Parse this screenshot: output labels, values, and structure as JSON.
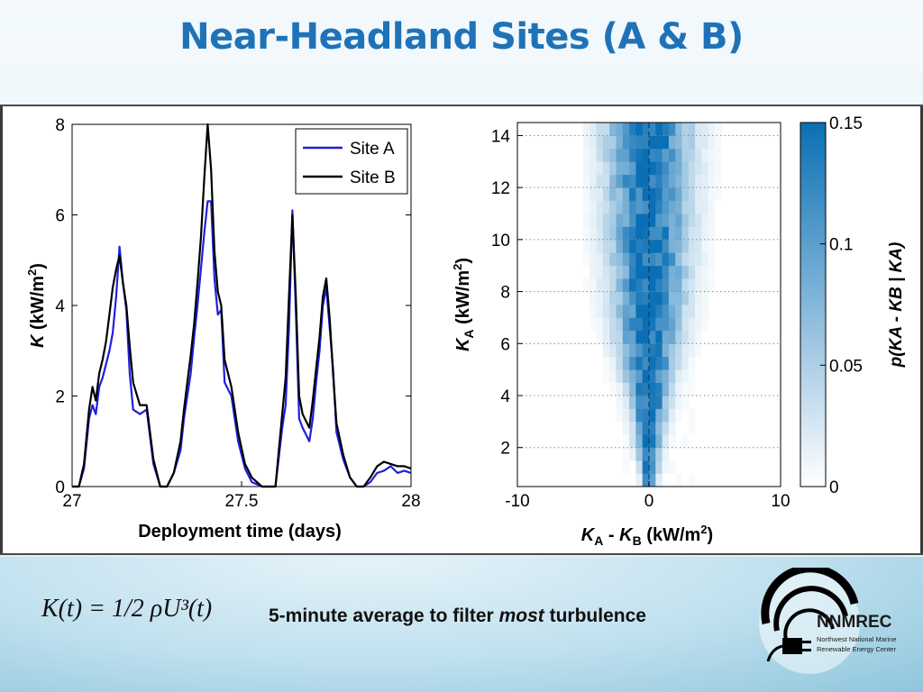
{
  "slide": {
    "title": "Near-Headland Sites (A & B)",
    "formula": "K(t) = 1/2 ρU³(t)",
    "caption_before": "5-minute average to filter ",
    "caption_emph": "most",
    "caption_after": " turbulence"
  },
  "logo": {
    "name": "NNMREC",
    "line1": "Northwest National Marine",
    "line2": "Renewable Energy Center"
  },
  "chart_data": [
    {
      "type": "line",
      "xlabel": "Deployment time (days)",
      "ylabel_main": "K",
      "ylabel_unit": " (kW/m",
      "ylabel_sup": "2",
      "ylabel_close": ")",
      "xlim": [
        27,
        28
      ],
      "ylim": [
        0,
        8
      ],
      "xticks": [
        "27",
        "27.5",
        "28"
      ],
      "yticks": [
        "0",
        "2",
        "4",
        "6",
        "8"
      ],
      "legend_position": "top-right",
      "series": [
        {
          "name": "Site A",
          "color": "#1f1fe0",
          "points": [
            [
              27.0,
              0
            ],
            [
              27.02,
              0
            ],
            [
              27.035,
              0.4
            ],
            [
              27.05,
              1.5
            ],
            [
              27.06,
              1.8
            ],
            [
              27.07,
              1.6
            ],
            [
              27.08,
              2.2
            ],
            [
              27.09,
              2.4
            ],
            [
              27.1,
              2.7
            ],
            [
              27.11,
              3.0
            ],
            [
              27.12,
              3.4
            ],
            [
              27.13,
              4.2
            ],
            [
              27.14,
              5.3
            ],
            [
              27.15,
              4.5
            ],
            [
              27.16,
              3.9
            ],
            [
              27.17,
              2.5
            ],
            [
              27.18,
              1.7
            ],
            [
              27.2,
              1.6
            ],
            [
              27.22,
              1.7
            ],
            [
              27.24,
              0.5
            ],
            [
              27.26,
              0
            ],
            [
              27.28,
              0
            ],
            [
              27.3,
              0.3
            ],
            [
              27.32,
              0.8
            ],
            [
              27.33,
              1.5
            ],
            [
              27.34,
              2.0
            ],
            [
              27.35,
              2.5
            ],
            [
              27.36,
              3.3
            ],
            [
              27.37,
              4.0
            ],
            [
              27.38,
              4.8
            ],
            [
              27.39,
              5.6
            ],
            [
              27.4,
              6.3
            ],
            [
              27.41,
              6.3
            ],
            [
              27.42,
              4.6
            ],
            [
              27.43,
              3.8
            ],
            [
              27.44,
              3.9
            ],
            [
              27.45,
              2.3
            ],
            [
              27.47,
              2.0
            ],
            [
              27.49,
              1.0
            ],
            [
              27.51,
              0.4
            ],
            [
              27.53,
              0.1
            ],
            [
              27.56,
              0
            ],
            [
              27.6,
              0
            ],
            [
              27.62,
              1.3
            ],
            [
              27.63,
              1.8
            ],
            [
              27.64,
              3.5
            ],
            [
              27.65,
              6.1
            ],
            [
              27.66,
              3.9
            ],
            [
              27.67,
              1.5
            ],
            [
              27.68,
              1.3
            ],
            [
              27.7,
              1.0
            ],
            [
              27.71,
              1.5
            ],
            [
              27.72,
              2.3
            ],
            [
              27.73,
              3.0
            ],
            [
              27.74,
              4.0
            ],
            [
              27.75,
              4.4
            ],
            [
              27.76,
              3.5
            ],
            [
              27.77,
              2.6
            ],
            [
              27.78,
              1.2
            ],
            [
              27.8,
              0.6
            ],
            [
              27.82,
              0.2
            ],
            [
              27.84,
              0
            ],
            [
              27.86,
              0
            ],
            [
              27.88,
              0.1
            ],
            [
              27.9,
              0.3
            ],
            [
              27.92,
              0.35
            ],
            [
              27.94,
              0.45
            ],
            [
              27.96,
              0.3
            ],
            [
              27.98,
              0.35
            ],
            [
              28.0,
              0.3
            ]
          ]
        },
        {
          "name": "Site B",
          "color": "#000000",
          "points": [
            [
              27.0,
              0
            ],
            [
              27.02,
              0
            ],
            [
              27.035,
              0.5
            ],
            [
              27.05,
              1.7
            ],
            [
              27.06,
              2.2
            ],
            [
              27.07,
              1.9
            ],
            [
              27.08,
              2.5
            ],
            [
              27.09,
              2.8
            ],
            [
              27.1,
              3.2
            ],
            [
              27.11,
              3.8
            ],
            [
              27.12,
              4.4
            ],
            [
              27.13,
              4.8
            ],
            [
              27.14,
              5.1
            ],
            [
              27.15,
              4.5
            ],
            [
              27.16,
              4.0
            ],
            [
              27.17,
              3.1
            ],
            [
              27.18,
              2.3
            ],
            [
              27.2,
              1.8
            ],
            [
              27.22,
              1.8
            ],
            [
              27.24,
              0.6
            ],
            [
              27.26,
              0
            ],
            [
              27.28,
              0
            ],
            [
              27.3,
              0.3
            ],
            [
              27.32,
              1.0
            ],
            [
              27.33,
              1.7
            ],
            [
              27.34,
              2.3
            ],
            [
              27.35,
              2.9
            ],
            [
              27.36,
              3.6
            ],
            [
              27.37,
              4.5
            ],
            [
              27.38,
              5.5
            ],
            [
              27.39,
              6.8
            ],
            [
              27.4,
              8.0
            ],
            [
              27.41,
              7.0
            ],
            [
              27.42,
              5.2
            ],
            [
              27.43,
              4.3
            ],
            [
              27.44,
              4.0
            ],
            [
              27.45,
              2.8
            ],
            [
              27.47,
              2.2
            ],
            [
              27.49,
              1.2
            ],
            [
              27.51,
              0.5
            ],
            [
              27.53,
              0.2
            ],
            [
              27.56,
              0
            ],
            [
              27.6,
              0
            ],
            [
              27.62,
              1.6
            ],
            [
              27.63,
              2.4
            ],
            [
              27.64,
              4.2
            ],
            [
              27.65,
              6.0
            ],
            [
              27.66,
              4.2
            ],
            [
              27.67,
              2.0
            ],
            [
              27.68,
              1.6
            ],
            [
              27.7,
              1.3
            ],
            [
              27.71,
              1.9
            ],
            [
              27.72,
              2.6
            ],
            [
              27.73,
              3.3
            ],
            [
              27.74,
              4.2
            ],
            [
              27.75,
              4.6
            ],
            [
              27.76,
              3.7
            ],
            [
              27.77,
              2.5
            ],
            [
              27.78,
              1.4
            ],
            [
              27.8,
              0.7
            ],
            [
              27.82,
              0.2
            ],
            [
              27.84,
              0
            ],
            [
              27.86,
              0
            ],
            [
              27.88,
              0.2
            ],
            [
              27.9,
              0.45
            ],
            [
              27.92,
              0.55
            ],
            [
              27.94,
              0.5
            ],
            [
              27.96,
              0.45
            ],
            [
              27.98,
              0.45
            ],
            [
              28.0,
              0.4
            ]
          ]
        }
      ]
    },
    {
      "type": "heatmap",
      "xlabel_k": "K",
      "xlabel_sub1": "A",
      "xlabel_mid": " - ",
      "xlabel_sub2": "B",
      "xlabel_unit": " (kW/m",
      "xlabel_sup": "2",
      "xlabel_close": ")",
      "ylabel_k": "K",
      "ylabel_sub": "A",
      "ylabel_unit": " (kW/m",
      "ylabel_sup": "2",
      "ylabel_close": ")",
      "xlim": [
        -10,
        10
      ],
      "ylim": [
        0.5,
        14.5
      ],
      "xticks": [
        "-10",
        "0",
        "10"
      ],
      "yticks": [
        "2",
        "4",
        "6",
        "8",
        "10",
        "12",
        "14"
      ],
      "grid": "horizontal dotted",
      "colorbar": {
        "label": "p(KA - KB | KA)",
        "ticks": [
          "0",
          "0.05",
          "0.1",
          "0.15"
        ],
        "range": [
          0,
          0.15
        ],
        "color_low": "#ffffff",
        "color_high": "#0a6fb4"
      },
      "density_profile": {
        "center": 0,
        "peak_probability": 0.15,
        "spread_by_ka": [
          [
            0.5,
            0.3
          ],
          [
            2,
            0.6
          ],
          [
            4,
            1.0
          ],
          [
            6,
            1.5
          ],
          [
            8,
            1.8
          ],
          [
            10,
            1.9
          ],
          [
            12,
            2.0
          ],
          [
            14.5,
            2.1
          ]
        ]
      }
    }
  ]
}
